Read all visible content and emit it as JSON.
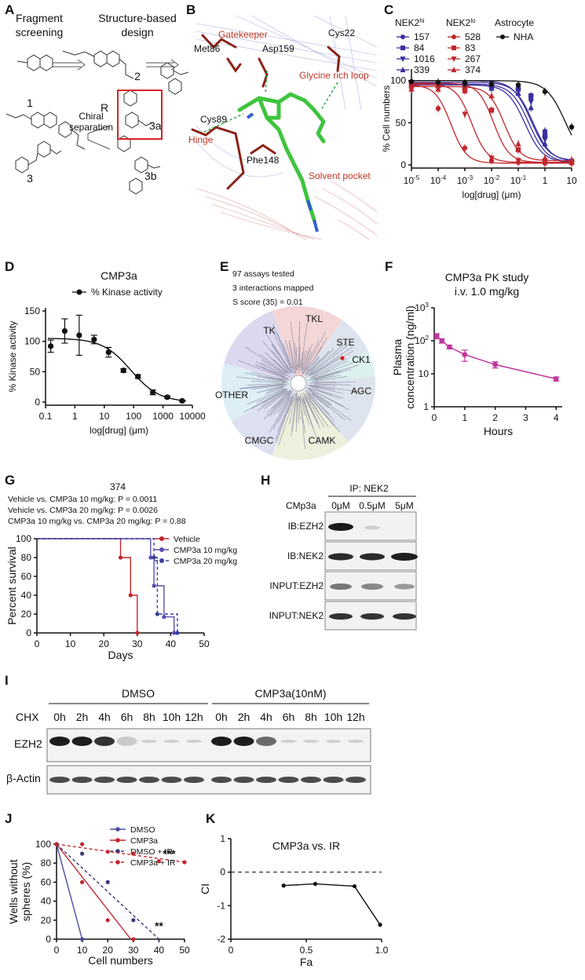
{
  "panels": {
    "A": {
      "letter": "A",
      "heading_left": [
        "Fragment",
        "screening"
      ],
      "heading_right": [
        "Structure-based",
        "design"
      ],
      "compound_labels": [
        "1",
        "2",
        "3",
        "3a",
        "3b"
      ],
      "chiral_label": [
        "Chiral",
        "separation"
      ],
      "r_label": "R"
    },
    "B": {
      "letter": "B",
      "labels": {
        "gatekeeper": "Gatekeeper",
        "met86": "Met86",
        "asp159": "Asp159",
        "cys22": "Cys22",
        "glycine_loop": "Glycine rich loop",
        "cys89": "Cys89",
        "hinge": "Hinge",
        "phe148": "Phe148",
        "solvent_pocket": "Solvent pocket"
      },
      "colors": {
        "red_label": "#c0392b",
        "ligand": "#3ec43e"
      }
    },
    "C": {
      "letter": "C"
    },
    "D": {
      "letter": "D"
    },
    "E": {
      "letter": "E",
      "lines": [
        "97 assays tested",
        "3 interactions mapped",
        "S score (35) = 0.01"
      ],
      "groups": [
        {
          "name": "TK",
          "color": "#3a2a8c"
        },
        {
          "name": "TKL",
          "color": "#b03030"
        },
        {
          "name": "STE",
          "color": "#3a5a8c"
        },
        {
          "name": "CK1",
          "color": "#2aa6b8"
        },
        {
          "name": "AGC",
          "color": "#2a4a7c"
        },
        {
          "name": "CAMK",
          "color": "#6a7a2a"
        },
        {
          "name": "CMGC",
          "color": "#2a3a7c"
        },
        {
          "name": "OTHER",
          "color": "#3aa0c8"
        }
      ]
    },
    "F": {
      "letter": "F"
    },
    "G": {
      "letter": "G",
      "stats": [
        "Vehicle vs. CMP3a 10 mg/kg: P = 0.0011",
        "Vehicle vs. CMP3a 20 mg/kg: P = 0.0026",
        "CMP3a 10 mg/kg vs. CMP3a 20 mg/kg: P = 0.88"
      ]
    },
    "H": {
      "letter": "H",
      "ip_label": "IP: NEK2",
      "treatment_label": "CMp3a",
      "doses": [
        "0μM",
        "0.5μM",
        "5μM"
      ],
      "rows": [
        "IB:EZH2",
        "IB:NEK2",
        "INPUT:EZH2",
        "INPUT:NEK2"
      ]
    },
    "I": {
      "letter": "I",
      "groups": [
        "DMSO",
        "CMP3a(10nM)"
      ],
      "chx_label": "CHX",
      "times": [
        "0h",
        "2h",
        "4h",
        "6h",
        "8h",
        "10h",
        "12h"
      ],
      "rows": [
        "EZH2",
        "β-Actin"
      ]
    },
    "J": {
      "letter": "J"
    },
    "K": {
      "letter": "K"
    }
  },
  "chart_data": [
    {
      "panel": "C",
      "type": "line",
      "title": "",
      "xlabel": "log[drug] (μm)",
      "ylabel": "% Cell numbers",
      "xscale": "log",
      "xlim": [
        1e-05,
        10
      ],
      "ylim": [
        0,
        110
      ],
      "x_ticks": [
        "10-5",
        "10-4",
        "10-3",
        "10-2",
        "10-1",
        "1",
        "10"
      ],
      "y_ticks": [
        0,
        50,
        100
      ],
      "legend_headers": [
        {
          "text": "NEK2hi",
          "color": "#3a2f9e"
        },
        {
          "text": "NEK2lo",
          "color": "#c0282e"
        },
        {
          "text": "Astrocyte",
          "color": "#111111"
        }
      ],
      "series": [
        {
          "name": "157",
          "color": "#3a2f9e",
          "marker": "circle",
          "ic50": 0.3,
          "top": 100,
          "bottom": 5,
          "hill": 1.3,
          "x": [
            1e-05,
            0.0001,
            0.001,
            0.01,
            0.1,
            0.3,
            1,
            10
          ],
          "y": [
            98,
            97,
            96,
            94,
            90,
            80,
            40,
            5
          ]
        },
        {
          "name": "84",
          "color": "#3a2f9e",
          "marker": "square",
          "ic50": 0.35,
          "top": 98,
          "bottom": 4,
          "hill": 1.3,
          "x": [
            1e-05,
            0.0001,
            0.001,
            0.01,
            0.1,
            0.3,
            1,
            10
          ],
          "y": [
            97,
            96,
            95,
            93,
            90,
            82,
            35,
            4
          ]
        },
        {
          "name": "1016",
          "color": "#3a2f9e",
          "marker": "triangle-down",
          "ic50": 0.25,
          "top": 96,
          "bottom": 3,
          "hill": 1.3,
          "x": [
            1e-05,
            0.0001,
            0.001,
            0.01,
            0.1,
            0.3,
            1,
            10
          ],
          "y": [
            95,
            95,
            94,
            92,
            88,
            75,
            30,
            3
          ]
        },
        {
          "name": "339",
          "color": "#3a2f9e",
          "marker": "triangle-up",
          "ic50": 0.18,
          "top": 95,
          "bottom": 3,
          "hill": 1.3,
          "x": [
            1e-05,
            0.0001,
            0.001,
            0.01,
            0.1,
            0.3,
            1,
            10
          ],
          "y": [
            94,
            94,
            93,
            91,
            85,
            68,
            25,
            3
          ]
        },
        {
          "name": "528",
          "color": "#c0282e",
          "marker": "circle",
          "ic50": 0.0003,
          "top": 95,
          "bottom": 2,
          "hill": 1.5,
          "x": [
            1e-05,
            0.0001,
            0.001,
            0.01,
            0.1,
            1,
            10
          ],
          "y": [
            92,
            67,
            20,
            5,
            3,
            2,
            2
          ]
        },
        {
          "name": "83",
          "color": "#c0282e",
          "marker": "square",
          "ic50": 0.012,
          "top": 97,
          "bottom": 3,
          "hill": 1.5,
          "x": [
            1e-05,
            0.0001,
            0.001,
            0.01,
            0.1,
            1,
            10
          ],
          "y": [
            96,
            95,
            90,
            65,
            18,
            5,
            3
          ]
        },
        {
          "name": "267",
          "color": "#c0282e",
          "marker": "triangle-down",
          "ic50": 0.0018,
          "top": 96,
          "bottom": 3,
          "hill": 1.5,
          "x": [
            1e-05,
            0.0001,
            0.001,
            0.01,
            0.1,
            1,
            10
          ],
          "y": [
            95,
            90,
            60,
            8,
            5,
            4,
            3
          ]
        },
        {
          "name": "374",
          "color": "#c0282e",
          "marker": "triangle-up",
          "ic50": 0.03,
          "top": 93,
          "bottom": 5,
          "hill": 1.5,
          "x": [
            1e-05,
            0.0001,
            0.001,
            0.01,
            0.1,
            1,
            10
          ],
          "y": [
            90,
            90,
            88,
            82,
            25,
            8,
            6
          ]
        },
        {
          "name": "NHA",
          "color": "#111111",
          "marker": "circle",
          "ic50": 6,
          "top": 100,
          "bottom": 0,
          "hill": 1.2,
          "x": [
            1e-05,
            0.0001,
            0.001,
            0.01,
            0.1,
            1,
            10
          ],
          "y": [
            99,
            98,
            97,
            96,
            95,
            87,
            45
          ]
        }
      ]
    },
    {
      "panel": "D",
      "type": "line",
      "title": "CMP3a",
      "xlabel": "log[drug] (μm)",
      "ylabel": "% Kinase activity",
      "xscale": "log",
      "xlim": [
        0.1,
        10000
      ],
      "ylim": [
        0,
        150
      ],
      "x_ticks": [
        "0.1",
        "1",
        "10",
        "100",
        "1000",
        "10000"
      ],
      "y_ticks": [
        0,
        50,
        100,
        150
      ],
      "legend": "% Kinase activity",
      "series": [
        {
          "name": "% Kinase activity",
          "color": "#111111",
          "x": [
            0.15,
            0.45,
            1.4,
            4.5,
            14,
            45,
            140,
            450,
            1400,
            4500
          ],
          "y": [
            92,
            117,
            110,
            103,
            82,
            52,
            42,
            16,
            8,
            2
          ],
          "err": [
            10,
            20,
            33,
            7,
            8,
            3,
            3,
            4,
            2,
            1
          ],
          "fit": {
            "top": 105,
            "bottom": 0,
            "ic50": 80,
            "hill": 0.9
          }
        }
      ]
    },
    {
      "panel": "F",
      "type": "line",
      "title": "CMP3a PK study",
      "subtitle": "i.v. 1.0 mg/kg",
      "xlabel": "Hours",
      "ylabel": "Plasma concentration (ng/ml)",
      "yscale": "log",
      "xlim": [
        0,
        4.2
      ],
      "ylim": [
        1,
        1000
      ],
      "x_ticks": [
        "0",
        "1",
        "2",
        "3",
        "4"
      ],
      "y_ticks": [
        "1",
        "10",
        "102",
        "103"
      ],
      "series": [
        {
          "name": "CMP3a",
          "color": "#c0369e",
          "x": [
            0.083,
            0.25,
            0.5,
            1,
            2,
            4
          ],
          "y": [
            140,
            100,
            65,
            38,
            19,
            7
          ],
          "err": [
            25,
            15,
            8,
            14,
            4,
            1
          ]
        }
      ]
    },
    {
      "panel": "G",
      "type": "line",
      "title": "374",
      "xlabel": "Days",
      "ylabel": "Percent survival",
      "xlim": [
        0,
        50
      ],
      "ylim": [
        0,
        100
      ],
      "x_ticks": [
        0,
        10,
        20,
        30,
        40,
        50
      ],
      "y_ticks": [
        0,
        20,
        40,
        60,
        80,
        100
      ],
      "series": [
        {
          "name": "Vehicle",
          "color": "#c0282e",
          "style": "solid",
          "x": [
            0,
            25,
            25,
            28,
            28,
            30,
            30
          ],
          "y": [
            100,
            100,
            80,
            80,
            40,
            40,
            0
          ]
        },
        {
          "name": "CMP3a 10 mg/kg",
          "color": "#5a4fb0",
          "style": "solid",
          "x": [
            0,
            34,
            34,
            35,
            35,
            38,
            38,
            41,
            41
          ],
          "y": [
            100,
            100,
            80,
            80,
            50,
            50,
            17,
            17,
            0
          ]
        },
        {
          "name": "CMP3a 20 mg/kg",
          "color": "#3a3fa0",
          "style": "dashed",
          "x": [
            0,
            35,
            35,
            36,
            36,
            42,
            42
          ],
          "y": [
            100,
            100,
            80,
            80,
            20,
            20,
            0
          ]
        }
      ]
    },
    {
      "panel": "J",
      "type": "scatter",
      "title": "",
      "xlabel": "Cell numbers",
      "ylabel": "Wells without spheres (%)",
      "xlim": [
        0,
        50
      ],
      "ylim": [
        0,
        100
      ],
      "x_ticks": [
        0,
        10,
        20,
        30,
        40,
        50
      ],
      "y_ticks": [
        0,
        20,
        40,
        60,
        80,
        100
      ],
      "annotations": [
        {
          "text": "***",
          "x": 44,
          "y": 86
        },
        {
          "text": "**",
          "x": 40,
          "y": 10
        }
      ],
      "series": [
        {
          "name": "DMSO",
          "color": "#4a4aa0",
          "style": "solid",
          "x": [
            0,
            10
          ],
          "y": [
            100,
            0
          ],
          "fit": [
            [
              0,
              100
            ],
            [
              10,
              0
            ]
          ]
        },
        {
          "name": "CMP3a",
          "color": "#c0282e",
          "style": "solid",
          "x": [
            0,
            10,
            20,
            30
          ],
          "y": [
            100,
            60,
            20,
            0
          ],
          "fit": [
            [
              0,
              100
            ],
            [
              29,
              0
            ]
          ]
        },
        {
          "name": "DMSO + IR",
          "color": "#3a3a7a",
          "style": "dashed",
          "x": [
            0,
            10,
            20,
            30
          ],
          "y": [
            100,
            90,
            60,
            20
          ],
          "fit": [
            [
              0,
              100
            ],
            [
              40,
              0
            ]
          ]
        },
        {
          "name": "CMP3a + IR",
          "color": "#c0282e",
          "style": "dashed",
          "x": [
            0,
            10,
            20,
            30,
            40,
            50
          ],
          "y": [
            100,
            100,
            92,
            90,
            82,
            81
          ],
          "fit": [
            [
              0,
              100
            ],
            [
              50,
              81
            ]
          ]
        }
      ]
    },
    {
      "panel": "K",
      "type": "line",
      "title": "CMP3a vs. IR",
      "xlabel": "Fa",
      "ylabel": "CI",
      "xlim": [
        0,
        1
      ],
      "ylim": [
        -2,
        1
      ],
      "x_ticks": [
        "0",
        "0.5",
        "1.0"
      ],
      "y_ticks": [
        "-2",
        "-1",
        "0",
        "1"
      ],
      "reference_line": 0,
      "series": [
        {
          "name": "CI",
          "color": "#111111",
          "x": [
            0.35,
            0.56,
            0.82,
            0.99
          ],
          "y": [
            -0.4,
            -0.35,
            -0.42,
            -1.57
          ]
        }
      ]
    }
  ]
}
